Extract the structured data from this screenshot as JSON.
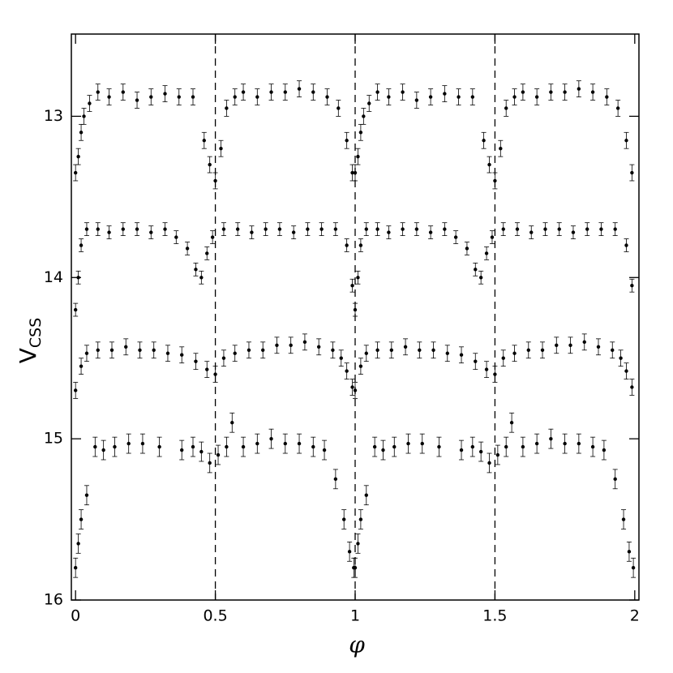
{
  "chart_data": {
    "type": "scatter",
    "xlabel": "φ",
    "ylabel": "V",
    "ylabel_sub": "CSS",
    "xlim": [
      -0.015,
      2.015
    ],
    "ylim": [
      12.49,
      16
    ],
    "y_inverted": true,
    "xticks": [
      0,
      0.5,
      1,
      1.5,
      2
    ],
    "yticks": [
      13,
      14,
      15,
      16
    ],
    "vlines": [
      0.5,
      1,
      1.5
    ],
    "series": [
      {
        "color": "#000000",
        "error": 0.05,
        "x": [
          0,
          0.01,
          0.02,
          0.03,
          0.05,
          0.08,
          0.12,
          0.17,
          0.22,
          0.27,
          0.32,
          0.37,
          0.42,
          0.46,
          0.48,
          0.5,
          0.52,
          0.54,
          0.57,
          0.6,
          0.65,
          0.7,
          0.75,
          0.8,
          0.85,
          0.9,
          0.94,
          0.97,
          0.99,
          1,
          1.01,
          1.02,
          1.03,
          1.05,
          1.08,
          1.12,
          1.17,
          1.22,
          1.27,
          1.32,
          1.37,
          1.42,
          1.46,
          1.48,
          1.5,
          1.52,
          1.54,
          1.57,
          1.6,
          1.65,
          1.7,
          1.75,
          1.8,
          1.85,
          1.9,
          1.94,
          1.97,
          1.99
        ],
        "values": [
          13.35,
          13.25,
          13.1,
          13.0,
          12.92,
          12.85,
          12.88,
          12.85,
          12.9,
          12.88,
          12.86,
          12.88,
          12.88,
          13.15,
          13.3,
          13.4,
          13.2,
          12.95,
          12.88,
          12.85,
          12.88,
          12.85,
          12.85,
          12.83,
          12.85,
          12.88,
          12.95,
          13.15,
          13.35,
          13.35,
          13.25,
          13.1,
          13.0,
          12.92,
          12.85,
          12.88,
          12.85,
          12.9,
          12.88,
          12.86,
          12.88,
          12.88,
          13.15,
          13.3,
          13.4,
          13.2,
          12.95,
          12.88,
          12.85,
          12.88,
          12.85,
          12.85,
          12.83,
          12.85,
          12.88,
          12.95,
          13.15,
          13.35
        ]
      },
      {
        "color": "#000000",
        "error": 0.04,
        "x": [
          0,
          0.01,
          0.02,
          0.04,
          0.08,
          0.12,
          0.17,
          0.22,
          0.27,
          0.32,
          0.36,
          0.4,
          0.43,
          0.45,
          0.47,
          0.49,
          0.53,
          0.58,
          0.63,
          0.68,
          0.73,
          0.78,
          0.83,
          0.88,
          0.93,
          0.97,
          0.99,
          1,
          1.01,
          1.02,
          1.04,
          1.08,
          1.12,
          1.17,
          1.22,
          1.27,
          1.32,
          1.36,
          1.4,
          1.43,
          1.45,
          1.47,
          1.49,
          1.53,
          1.58,
          1.63,
          1.68,
          1.73,
          1.78,
          1.83,
          1.88,
          1.93,
          1.97,
          1.99
        ],
        "values": [
          14.2,
          14.0,
          13.8,
          13.7,
          13.7,
          13.72,
          13.7,
          13.7,
          13.72,
          13.7,
          13.75,
          13.82,
          13.95,
          14.0,
          13.85,
          13.75,
          13.7,
          13.7,
          13.72,
          13.7,
          13.7,
          13.72,
          13.7,
          13.7,
          13.7,
          13.8,
          14.05,
          14.2,
          14.0,
          13.8,
          13.7,
          13.7,
          13.72,
          13.7,
          13.7,
          13.72,
          13.7,
          13.75,
          13.82,
          13.95,
          14.0,
          13.85,
          13.75,
          13.7,
          13.7,
          13.72,
          13.7,
          13.7,
          13.72,
          13.7,
          13.7,
          13.7,
          13.8,
          14.05
        ]
      },
      {
        "color": "#000000",
        "error": 0.05,
        "x": [
          0,
          0.02,
          0.04,
          0.08,
          0.13,
          0.18,
          0.23,
          0.28,
          0.33,
          0.38,
          0.43,
          0.47,
          0.5,
          0.53,
          0.57,
          0.62,
          0.67,
          0.72,
          0.77,
          0.82,
          0.87,
          0.92,
          0.95,
          0.97,
          0.99,
          1,
          1.02,
          1.04,
          1.08,
          1.13,
          1.18,
          1.23,
          1.28,
          1.33,
          1.38,
          1.43,
          1.47,
          1.5,
          1.53,
          1.57,
          1.62,
          1.67,
          1.72,
          1.77,
          1.82,
          1.87,
          1.92,
          1.95,
          1.97,
          1.99
        ],
        "values": [
          14.7,
          14.55,
          14.47,
          14.45,
          14.45,
          14.43,
          14.45,
          14.45,
          14.47,
          14.48,
          14.52,
          14.57,
          14.6,
          14.5,
          14.47,
          14.45,
          14.45,
          14.42,
          14.42,
          14.4,
          14.43,
          14.45,
          14.5,
          14.58,
          14.68,
          14.7,
          14.55,
          14.47,
          14.45,
          14.45,
          14.43,
          14.45,
          14.45,
          14.47,
          14.48,
          14.52,
          14.57,
          14.6,
          14.5,
          14.47,
          14.45,
          14.45,
          14.42,
          14.42,
          14.4,
          14.43,
          14.45,
          14.5,
          14.58,
          14.68
        ]
      },
      {
        "color": "#000000",
        "error": 0.06,
        "x": [
          0,
          0.01,
          0.02,
          0.04,
          0.07,
          0.1,
          0.14,
          0.19,
          0.24,
          0.3,
          0.38,
          0.42,
          0.45,
          0.48,
          0.51,
          0.54,
          0.56,
          0.6,
          0.65,
          0.7,
          0.75,
          0.8,
          0.85,
          0.89,
          0.93,
          0.96,
          0.98,
          0.995,
          1,
          1.01,
          1.02,
          1.04,
          1.07,
          1.1,
          1.14,
          1.19,
          1.24,
          1.3,
          1.38,
          1.42,
          1.45,
          1.48,
          1.51,
          1.54,
          1.56,
          1.6,
          1.65,
          1.7,
          1.75,
          1.8,
          1.85,
          1.89,
          1.93,
          1.96,
          1.98,
          1.995
        ],
        "values": [
          15.8,
          15.65,
          15.5,
          15.35,
          15.05,
          15.07,
          15.05,
          15.03,
          15.03,
          15.05,
          15.07,
          15.05,
          15.08,
          15.15,
          15.1,
          15.05,
          14.9,
          15.05,
          15.03,
          15.0,
          15.03,
          15.03,
          15.05,
          15.07,
          15.25,
          15.5,
          15.7,
          15.8,
          15.8,
          15.65,
          15.5,
          15.35,
          15.05,
          15.07,
          15.05,
          15.03,
          15.03,
          15.05,
          15.07,
          15.05,
          15.08,
          15.15,
          15.1,
          15.05,
          14.9,
          15.05,
          15.03,
          15.0,
          15.03,
          15.03,
          15.05,
          15.07,
          15.25,
          15.5,
          15.7,
          15.8
        ]
      }
    ]
  }
}
